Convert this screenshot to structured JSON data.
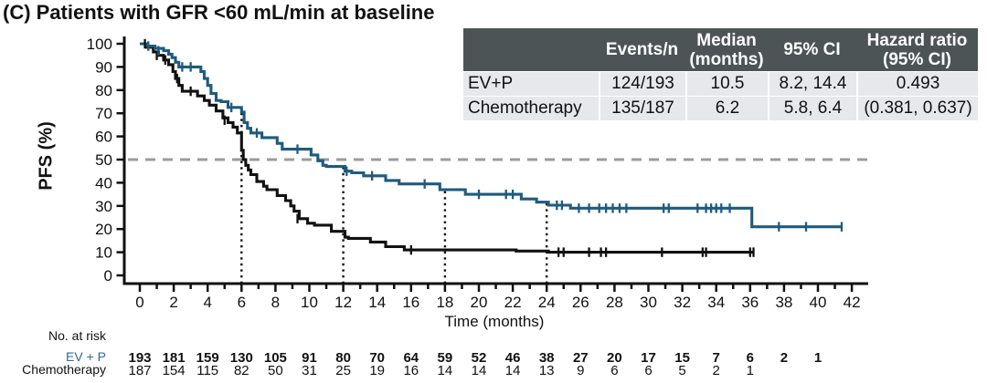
{
  "title": "(C) Patients with GFR <60 mL/min at baseline",
  "colors": {
    "evp_curve": "#1e5b7e",
    "evp_text": "#2b6d94",
    "chemo": "#111111",
    "table_header_bg": "#4c5456",
    "table_row_bg": "#e7e8ec",
    "dashed_line": "#9b9b9b",
    "axis": "#111111"
  },
  "summary_table": {
    "columns": [
      "",
      "Events/n",
      "Median\n(months)",
      "95% CI",
      "Hazard ratio\n(95% CI)"
    ],
    "rows": [
      {
        "label": "EV+P",
        "events_n": "124/193",
        "median": "10.5",
        "ci": "8.2, 14.4",
        "hr": "0.493"
      },
      {
        "label": "Chemotherapy",
        "events_n": "135/187",
        "median": "6.2",
        "ci": "5.8, 6.4",
        "hr": "(0.381, 0.637)"
      }
    ]
  },
  "chart_data": {
    "type": "line",
    "subtype": "kaplan-meier-step",
    "title": "(C) Patients with GFR <60 mL/min at baseline",
    "xlabel": "Time (months)",
    "ylabel": "PFS (%)",
    "axes": {
      "x": {
        "min": 0,
        "max": 42,
        "label_step": 2,
        "minor_step": 1
      },
      "y": {
        "min": 0,
        "max": 100,
        "step": 10
      }
    },
    "grid": false,
    "reference_lines": {
      "horizontal_dashed_y": 50,
      "vertical_dotted_x": [
        6,
        12,
        18,
        24
      ]
    },
    "series": [
      {
        "name": "EV+P",
        "median_months": 10.5,
        "steps": [
          [
            0,
            100
          ],
          [
            0.45,
            99
          ],
          [
            0.9,
            98
          ],
          [
            1.4,
            97
          ],
          [
            1.7,
            95.5
          ],
          [
            1.9,
            94
          ],
          [
            2.1,
            92
          ],
          [
            2.3,
            90
          ],
          [
            3.6,
            88
          ],
          [
            3.8,
            85
          ],
          [
            4.0,
            82
          ],
          [
            4.2,
            78.5
          ],
          [
            4.5,
            75.5
          ],
          [
            4.8,
            75
          ],
          [
            5.2,
            72.5
          ],
          [
            6.0,
            70.5
          ],
          [
            6.15,
            66
          ],
          [
            6.35,
            63.5
          ],
          [
            6.55,
            61.5
          ],
          [
            7.2,
            59.5
          ],
          [
            8.1,
            57
          ],
          [
            8.4,
            54.5
          ],
          [
            10.1,
            52
          ],
          [
            10.5,
            49.5
          ],
          [
            10.8,
            47.5
          ],
          [
            11.0,
            47
          ],
          [
            12.1,
            45
          ],
          [
            12.5,
            44.3
          ],
          [
            13.2,
            43
          ],
          [
            14.5,
            41
          ],
          [
            15.3,
            39.5
          ],
          [
            17.7,
            37
          ],
          [
            19.2,
            35
          ],
          [
            22.5,
            33
          ],
          [
            23.4,
            31.6
          ],
          [
            24.1,
            30.3
          ],
          [
            25.4,
            29
          ],
          [
            36.1,
            21
          ],
          [
            41.4,
            21
          ]
        ],
        "censors": [
          [
            0.5,
            99
          ],
          [
            1.1,
            97
          ],
          [
            2.5,
            90
          ],
          [
            3.0,
            90
          ],
          [
            5.4,
            72.5
          ],
          [
            6.9,
            61.5
          ],
          [
            9.3,
            54.5
          ],
          [
            12.2,
            45
          ],
          [
            13.7,
            43
          ],
          [
            16.8,
            39.5
          ],
          [
            20.0,
            35
          ],
          [
            21.6,
            35
          ],
          [
            22.0,
            35
          ],
          [
            24.6,
            30.3
          ],
          [
            24.9,
            30.3
          ],
          [
            25.9,
            29
          ],
          [
            26.5,
            29
          ],
          [
            27.1,
            29
          ],
          [
            27.5,
            29
          ],
          [
            27.9,
            29
          ],
          [
            28.3,
            29
          ],
          [
            28.7,
            29
          ],
          [
            30.9,
            29
          ],
          [
            31.2,
            29
          ],
          [
            32.9,
            29
          ],
          [
            33.4,
            29
          ],
          [
            33.7,
            29
          ],
          [
            34.0,
            29
          ],
          [
            34.3,
            29
          ],
          [
            34.8,
            29
          ],
          [
            37.7,
            21
          ],
          [
            39.3,
            21
          ],
          [
            41.4,
            21
          ]
        ]
      },
      {
        "name": "Chemotherapy",
        "median_months": 6.2,
        "steps": [
          [
            0,
            100
          ],
          [
            0.4,
            98.5
          ],
          [
            0.8,
            96.5
          ],
          [
            1.1,
            95
          ],
          [
            1.4,
            93
          ],
          [
            1.7,
            91
          ],
          [
            1.95,
            88
          ],
          [
            2.1,
            85
          ],
          [
            2.3,
            82
          ],
          [
            2.5,
            79.5
          ],
          [
            3.4,
            77.5
          ],
          [
            3.8,
            75.5
          ],
          [
            4.1,
            73.5
          ],
          [
            4.5,
            71
          ],
          [
            4.9,
            68
          ],
          [
            5.2,
            66
          ],
          [
            5.5,
            64
          ],
          [
            5.75,
            61.5
          ],
          [
            6.0,
            54
          ],
          [
            6.1,
            50
          ],
          [
            6.25,
            47.5
          ],
          [
            6.4,
            45.5
          ],
          [
            6.55,
            43.5
          ],
          [
            6.9,
            40.5
          ],
          [
            7.3,
            38.5
          ],
          [
            7.5,
            37
          ],
          [
            8.1,
            34.5
          ],
          [
            8.6,
            32.3
          ],
          [
            8.9,
            30
          ],
          [
            9.1,
            27.7
          ],
          [
            9.4,
            24.5
          ],
          [
            9.9,
            22.5
          ],
          [
            10.3,
            21.7
          ],
          [
            11.3,
            19
          ],
          [
            12.1,
            16.5
          ],
          [
            12.3,
            16
          ],
          [
            13.6,
            14.4
          ],
          [
            14.5,
            12.4
          ],
          [
            15.6,
            11
          ],
          [
            22.2,
            10.5
          ],
          [
            24.1,
            10
          ],
          [
            36.2,
            10
          ]
        ],
        "censors": [
          [
            0.3,
            100
          ],
          [
            1.0,
            95
          ],
          [
            1.5,
            93
          ],
          [
            2.2,
            85
          ],
          [
            3.0,
            79.5
          ],
          [
            5.0,
            67
          ],
          [
            9.3,
            24.5
          ],
          [
            16.0,
            11
          ],
          [
            24.7,
            10
          ],
          [
            25.0,
            10
          ],
          [
            26.5,
            10
          ],
          [
            27.2,
            10
          ],
          [
            27.5,
            10
          ],
          [
            30.8,
            10
          ],
          [
            33.2,
            10
          ],
          [
            33.4,
            10
          ],
          [
            36.0,
            10
          ],
          [
            36.2,
            10
          ]
        ]
      }
    ]
  },
  "risk_table": {
    "heading": "No. at risk",
    "month_step": 2,
    "rows": [
      {
        "label": "EV + P",
        "bold": true,
        "values": [
          193,
          181,
          159,
          130,
          105,
          91,
          80,
          70,
          64,
          59,
          52,
          46,
          38,
          27,
          20,
          17,
          15,
          7,
          6,
          2,
          1
        ]
      },
      {
        "label": "Chemotherapy",
        "bold": false,
        "values": [
          187,
          154,
          115,
          82,
          50,
          31,
          25,
          19,
          16,
          14,
          14,
          14,
          13,
          9,
          6,
          6,
          5,
          2,
          1
        ]
      }
    ]
  }
}
